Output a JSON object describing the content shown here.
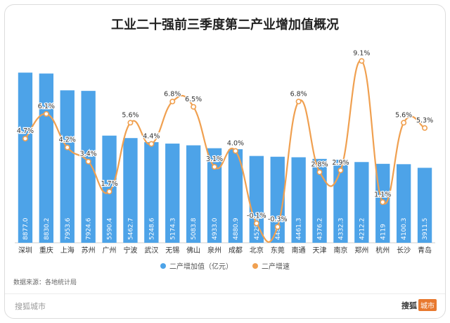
{
  "chart_data": {
    "type": "bar+line",
    "title": "工业二十强前三季度第二产业增加值概况",
    "categories": [
      "深圳",
      "重庆",
      "上海",
      "苏州",
      "广州",
      "宁波",
      "武汉",
      "无锡",
      "佛山",
      "泉州",
      "成都",
      "北京",
      "东莞",
      "南通",
      "天津",
      "南京",
      "郑州",
      "杭州",
      "长沙",
      "青岛"
    ],
    "series": [
      {
        "name": "二产增加值（亿元）",
        "type": "bar",
        "color": "#4da3e8",
        "values": [
          8877.0,
          8830.2,
          7953.6,
          7924.6,
          5590.4,
          5462.7,
          5248.6,
          5174.3,
          5083.8,
          4933.0,
          4880.9,
          4529.1,
          4488.6,
          4461.3,
          4376.2,
          4332.3,
          4212.2,
          4119,
          4100.3,
          3911.5
        ],
        "labels": [
          "8877.0",
          "8830.2",
          "7953.6",
          "7924.6",
          "5590.4",
          "5462.7",
          "5248.6",
          "5174.3",
          "5083.8",
          "4933.0",
          "4880.9",
          "4529.1",
          "4488.6",
          "4461.3",
          "4376.2",
          "4332.3",
          "4212.2",
          "4119",
          "4100.3",
          "3911.5"
        ]
      },
      {
        "name": "二产增速",
        "type": "line",
        "color": "#f0a050",
        "values": [
          4.7,
          6.1,
          4.2,
          3.4,
          1.7,
          5.6,
          4.4,
          6.8,
          6.5,
          3.1,
          4.0,
          -0.1,
          -0.3,
          6.8,
          2.8,
          2.9,
          9.1,
          1.1,
          5.6,
          5.3
        ],
        "labels": [
          "4.7%",
          "6.1%",
          "4.2%",
          "3.4%",
          "1.7%",
          "5.6%",
          "4.4%",
          "6.8%",
          "6.5%",
          "3.1%",
          "4.0%",
          "-0.1%",
          "-0.3%",
          "6.8%",
          "2.8%",
          "2.9%",
          "9.1%",
          "1.1%",
          "5.6%",
          "5.3%"
        ]
      }
    ],
    "bar_ylim": [
      0,
      10500
    ],
    "line_ylim": [
      -1.2,
      10.2
    ],
    "grid": false,
    "legend_position": "bottom"
  },
  "source_text": "数据来源：各地统计局",
  "brand": {
    "left": "搜狐城市",
    "right_main": "搜狐",
    "right_badge": "城市"
  }
}
